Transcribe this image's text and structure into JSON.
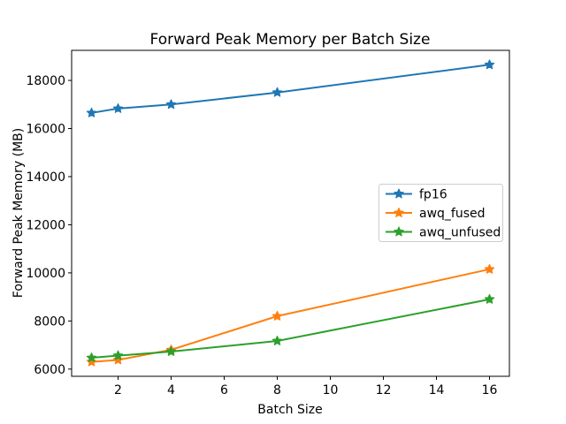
{
  "figure": {
    "background_color": "#ffffff"
  },
  "chart_data": {
    "type": "line",
    "title": "Forward Peak Memory per Batch Size",
    "xlabel": "Batch Size",
    "ylabel": "Forward Peak Memory (MB)",
    "x": [
      1,
      2,
      4,
      8,
      16
    ],
    "series": [
      {
        "name": "fp16",
        "color": "#1f77b4",
        "marker": "star",
        "values": [
          16650,
          16830,
          17000,
          17500,
          18650
        ]
      },
      {
        "name": "awq_fused",
        "color": "#ff7f0e",
        "marker": "star",
        "values": [
          6300,
          6380,
          6800,
          8200,
          10150
        ]
      },
      {
        "name": "awq_unfused",
        "color": "#2ca02c",
        "marker": "star",
        "values": [
          6470,
          6560,
          6730,
          7170,
          8900
        ]
      }
    ],
    "xlim": [
      0.25,
      16.75
    ],
    "ylim": [
      5700,
      19250
    ],
    "xticks": [
      2,
      4,
      6,
      8,
      10,
      12,
      14,
      16
    ],
    "yticks": [
      6000,
      8000,
      10000,
      12000,
      14000,
      16000,
      18000
    ],
    "grid": false,
    "legend": {
      "position": "center-right",
      "entries": [
        "fp16",
        "awq_fused",
        "awq_unfused"
      ],
      "border_color": "#cccccc",
      "background_color": "#ffffff"
    },
    "axes_color": "#000000"
  }
}
